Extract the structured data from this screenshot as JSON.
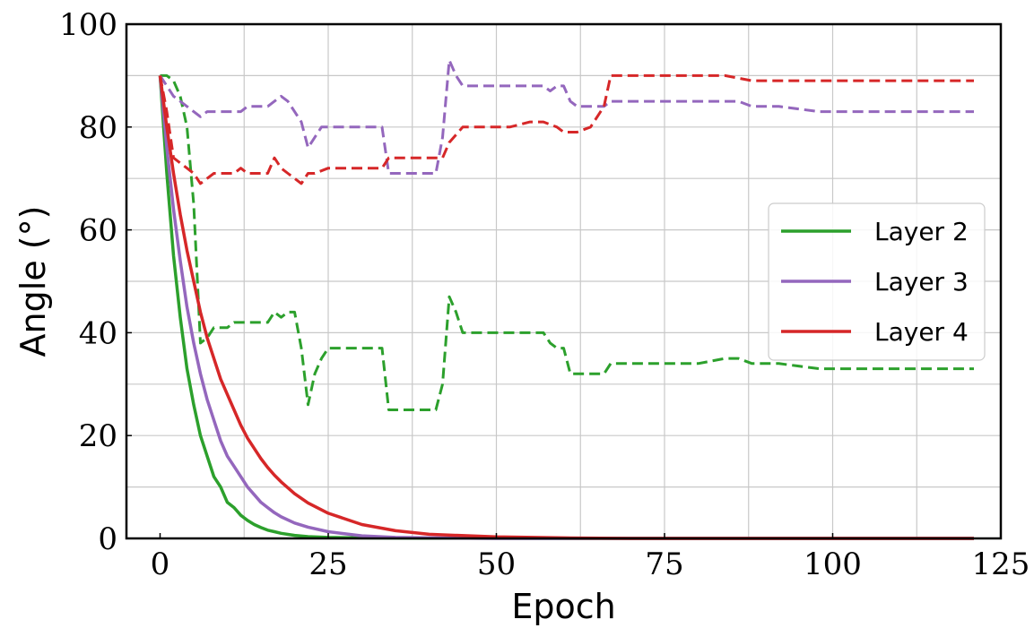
{
  "chart_data": {
    "type": "line",
    "title": "",
    "xlabel": "Epoch",
    "ylabel": "Angle (°)",
    "xlim": [
      -5,
      125
    ],
    "ylim": [
      0,
      100
    ],
    "xticks": [
      "0",
      "25",
      "50",
      "75",
      "100",
      "125"
    ],
    "yticks": [
      "0",
      "20",
      "40",
      "60",
      "80",
      "100"
    ],
    "grid": true,
    "legend_position": "right",
    "series": [
      {
        "name": "Layer 2",
        "color": "#2ca02c",
        "dashed": [
          [
            0,
            90
          ],
          [
            1,
            90
          ],
          [
            2,
            89
          ],
          [
            3,
            86
          ],
          [
            4,
            80
          ],
          [
            5,
            65
          ],
          [
            6,
            38
          ],
          [
            7,
            39
          ],
          [
            8,
            41
          ],
          [
            9,
            41
          ],
          [
            10,
            41
          ],
          [
            11,
            42
          ],
          [
            12,
            42
          ],
          [
            13,
            42
          ],
          [
            14,
            42
          ],
          [
            15,
            42
          ],
          [
            16,
            42
          ],
          [
            17,
            44
          ],
          [
            18,
            43
          ],
          [
            19,
            44
          ],
          [
            20,
            44
          ],
          [
            21,
            37
          ],
          [
            22,
            26
          ],
          [
            23,
            32
          ],
          [
            24,
            35
          ],
          [
            25,
            37
          ],
          [
            26,
            37
          ],
          [
            27,
            37
          ],
          [
            30,
            37
          ],
          [
            33,
            37
          ],
          [
            34,
            25
          ],
          [
            35,
            25
          ],
          [
            38,
            25
          ],
          [
            41,
            25
          ],
          [
            42,
            30
          ],
          [
            43,
            47
          ],
          [
            44,
            44
          ],
          [
            45,
            40
          ],
          [
            48,
            40
          ],
          [
            52,
            40
          ],
          [
            55,
            40
          ],
          [
            57,
            40
          ],
          [
            58,
            38
          ],
          [
            59,
            37
          ],
          [
            60,
            37
          ],
          [
            61,
            32
          ],
          [
            62,
            32
          ],
          [
            64,
            32
          ],
          [
            66,
            32
          ],
          [
            67,
            34
          ],
          [
            70,
            34
          ],
          [
            75,
            34
          ],
          [
            80,
            34
          ],
          [
            84,
            35
          ],
          [
            86,
            35
          ],
          [
            88,
            34
          ],
          [
            92,
            34
          ],
          [
            98,
            33
          ],
          [
            105,
            33
          ],
          [
            112,
            33
          ],
          [
            121,
            33
          ]
        ],
        "solid": [
          [
            0,
            90
          ],
          [
            1,
            71
          ],
          [
            2,
            55
          ],
          [
            3,
            43
          ],
          [
            4,
            33
          ],
          [
            5,
            26
          ],
          [
            6,
            20
          ],
          [
            7,
            16
          ],
          [
            8,
            12
          ],
          [
            9,
            10
          ],
          [
            10,
            7
          ],
          [
            11,
            6
          ],
          [
            12,
            4.5
          ],
          [
            13,
            3.5
          ],
          [
            14,
            2.7
          ],
          [
            15,
            2.1
          ],
          [
            16,
            1.6
          ],
          [
            17,
            1.3
          ],
          [
            18,
            1
          ],
          [
            20,
            0.6
          ],
          [
            22,
            0.35
          ],
          [
            25,
            0.2
          ],
          [
            30,
            0.1
          ],
          [
            40,
            0.05
          ],
          [
            60,
            0
          ],
          [
            121,
            0
          ]
        ]
      },
      {
        "name": "Layer 3",
        "color": "#9467bd",
        "dashed": [
          [
            0,
            90
          ],
          [
            1,
            88
          ],
          [
            2,
            86
          ],
          [
            3,
            85
          ],
          [
            4,
            84
          ],
          [
            5,
            83
          ],
          [
            6,
            82
          ],
          [
            7,
            83
          ],
          [
            8,
            83
          ],
          [
            9,
            83
          ],
          [
            10,
            83
          ],
          [
            11,
            83
          ],
          [
            12,
            83
          ],
          [
            13,
            84
          ],
          [
            14,
            84
          ],
          [
            15,
            84
          ],
          [
            16,
            84
          ],
          [
            17,
            85
          ],
          [
            18,
            86
          ],
          [
            19,
            85
          ],
          [
            20,
            83
          ],
          [
            21,
            81
          ],
          [
            22,
            76
          ],
          [
            23,
            78
          ],
          [
            24,
            80
          ],
          [
            25,
            80
          ],
          [
            27,
            80
          ],
          [
            30,
            80
          ],
          [
            33,
            80
          ],
          [
            34,
            71
          ],
          [
            35,
            71
          ],
          [
            38,
            71
          ],
          [
            41,
            71
          ],
          [
            42,
            78
          ],
          [
            43,
            93
          ],
          [
            44,
            90
          ],
          [
            45,
            88
          ],
          [
            50,
            88
          ],
          [
            55,
            88
          ],
          [
            57,
            88
          ],
          [
            58,
            87
          ],
          [
            59,
            88
          ],
          [
            60,
            88
          ],
          [
            61,
            85
          ],
          [
            62,
            84
          ],
          [
            64,
            84
          ],
          [
            66,
            84
          ],
          [
            67,
            85
          ],
          [
            70,
            85
          ],
          [
            75,
            85
          ],
          [
            80,
            85
          ],
          [
            86,
            85
          ],
          [
            88,
            84
          ],
          [
            92,
            84
          ],
          [
            98,
            83
          ],
          [
            105,
            83
          ],
          [
            112,
            83
          ],
          [
            121,
            83
          ]
        ],
        "solid": [
          [
            0,
            90
          ],
          [
            1,
            76
          ],
          [
            2,
            64
          ],
          [
            3,
            54
          ],
          [
            4,
            45
          ],
          [
            5,
            38
          ],
          [
            6,
            32
          ],
          [
            7,
            27
          ],
          [
            8,
            23
          ],
          [
            9,
            19
          ],
          [
            10,
            16
          ],
          [
            11,
            14
          ],
          [
            12,
            12
          ],
          [
            13,
            10
          ],
          [
            14,
            8.5
          ],
          [
            15,
            7
          ],
          [
            16,
            6
          ],
          [
            17,
            5
          ],
          [
            18,
            4.2
          ],
          [
            20,
            3
          ],
          [
            22,
            2.2
          ],
          [
            25,
            1.3
          ],
          [
            30,
            0.5
          ],
          [
            35,
            0.2
          ],
          [
            40,
            0.1
          ],
          [
            50,
            0
          ],
          [
            121,
            0
          ]
        ]
      },
      {
        "name": "Layer 4",
        "color": "#d62728",
        "dashed": [
          [
            0,
            90
          ],
          [
            1,
            83
          ],
          [
            2,
            74
          ],
          [
            3,
            73
          ],
          [
            4,
            72
          ],
          [
            5,
            71
          ],
          [
            6,
            69
          ],
          [
            7,
            70
          ],
          [
            8,
            71
          ],
          [
            9,
            71
          ],
          [
            10,
            71
          ],
          [
            11,
            71
          ],
          [
            12,
            72
          ],
          [
            13,
            71
          ],
          [
            14,
            71
          ],
          [
            15,
            71
          ],
          [
            16,
            71
          ],
          [
            17,
            74
          ],
          [
            18,
            72
          ],
          [
            19,
            71
          ],
          [
            20,
            70
          ],
          [
            21,
            69
          ],
          [
            22,
            71
          ],
          [
            23,
            71
          ],
          [
            25,
            72
          ],
          [
            27,
            72
          ],
          [
            30,
            72
          ],
          [
            33,
            72
          ],
          [
            34,
            74
          ],
          [
            36,
            74
          ],
          [
            40,
            74
          ],
          [
            42,
            74
          ],
          [
            43,
            77
          ],
          [
            45,
            80
          ],
          [
            48,
            80
          ],
          [
            52,
            80
          ],
          [
            55,
            81
          ],
          [
            57,
            81
          ],
          [
            59,
            80
          ],
          [
            60,
            79
          ],
          [
            62,
            79
          ],
          [
            64,
            80
          ],
          [
            66,
            84
          ],
          [
            67,
            90
          ],
          [
            70,
            90
          ],
          [
            75,
            90
          ],
          [
            80,
            90
          ],
          [
            84,
            90
          ],
          [
            88,
            89
          ],
          [
            92,
            89
          ],
          [
            98,
            89
          ],
          [
            105,
            89
          ],
          [
            112,
            89
          ],
          [
            121,
            89
          ]
        ],
        "solid": [
          [
            0,
            90
          ],
          [
            1,
            80
          ],
          [
            2,
            71
          ],
          [
            3,
            63
          ],
          [
            4,
            56
          ],
          [
            5,
            50
          ],
          [
            6,
            44
          ],
          [
            7,
            39
          ],
          [
            8,
            35
          ],
          [
            9,
            31
          ],
          [
            10,
            28
          ],
          [
            11,
            25
          ],
          [
            12,
            22
          ],
          [
            13,
            19.5
          ],
          [
            14,
            17.5
          ],
          [
            15,
            15.5
          ],
          [
            16,
            13.8
          ],
          [
            17,
            12.3
          ],
          [
            18,
            11
          ],
          [
            20,
            8.7
          ],
          [
            22,
            6.9
          ],
          [
            25,
            4.9
          ],
          [
            30,
            2.7
          ],
          [
            35,
            1.5
          ],
          [
            40,
            0.8
          ],
          [
            50,
            0.3
          ],
          [
            60,
            0.1
          ],
          [
            70,
            0
          ],
          [
            121,
            0
          ]
        ]
      }
    ]
  }
}
